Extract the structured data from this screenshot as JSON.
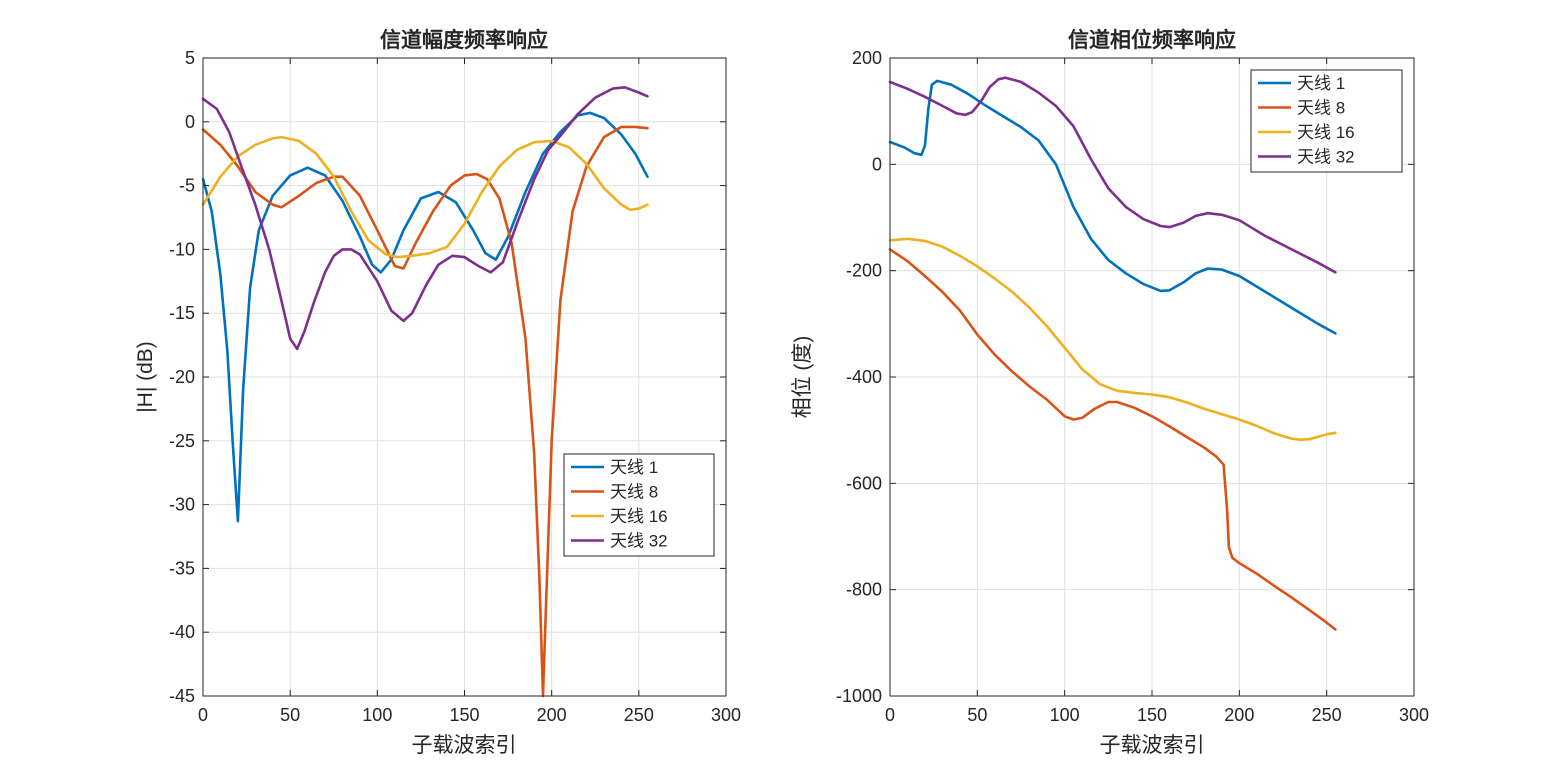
{
  "chart_data": [
    {
      "type": "line",
      "title": "信道幅度频率响应",
      "xlabel": "子载波索引",
      "ylabel": "|H| (dB)",
      "xlim": [
        0,
        300
      ],
      "ylim": [
        -45,
        5
      ],
      "xticks": [
        0,
        50,
        100,
        150,
        200,
        250,
        300
      ],
      "yticks": [
        5,
        0,
        -5,
        -10,
        -15,
        -20,
        -25,
        -30,
        -35,
        -40,
        -45
      ],
      "grid": true,
      "legend_position": "bottom-right",
      "series": [
        {
          "name": "天线 1",
          "color": "#0072BD",
          "points": [
            [
              0,
              -4.5
            ],
            [
              5,
              -7
            ],
            [
              10,
              -12
            ],
            [
              14,
              -18
            ],
            [
              17,
              -25
            ],
            [
              20,
              -31.3
            ],
            [
              23,
              -21
            ],
            [
              27,
              -13
            ],
            [
              32,
              -8.5
            ],
            [
              40,
              -5.8
            ],
            [
              50,
              -4.2
            ],
            [
              60,
              -3.6
            ],
            [
              70,
              -4.2
            ],
            [
              80,
              -6.2
            ],
            [
              90,
              -9
            ],
            [
              97,
              -11.2
            ],
            [
              102,
              -11.8
            ],
            [
              108,
              -10.8
            ],
            [
              115,
              -8.5
            ],
            [
              125,
              -6
            ],
            [
              135,
              -5.5
            ],
            [
              145,
              -6.3
            ],
            [
              155,
              -8.5
            ],
            [
              162,
              -10.3
            ],
            [
              168,
              -10.8
            ],
            [
              175,
              -9
            ],
            [
              185,
              -5.5
            ],
            [
              195,
              -2.5
            ],
            [
              205,
              -0.8
            ],
            [
              215,
              0.5
            ],
            [
              222,
              0.7
            ],
            [
              230,
              0.3
            ],
            [
              240,
              -1
            ],
            [
              248,
              -2.5
            ],
            [
              255,
              -4.3
            ]
          ]
        },
        {
          "name": "天线 8",
          "color": "#D95319",
          "points": [
            [
              0,
              -0.6
            ],
            [
              10,
              -1.8
            ],
            [
              20,
              -3.5
            ],
            [
              30,
              -5.5
            ],
            [
              40,
              -6.5
            ],
            [
              45,
              -6.7
            ],
            [
              55,
              -5.8
            ],
            [
              65,
              -4.8
            ],
            [
              75,
              -4.3
            ],
            [
              80,
              -4.3
            ],
            [
              90,
              -5.8
            ],
            [
              100,
              -8.5
            ],
            [
              110,
              -11.3
            ],
            [
              115,
              -11.5
            ],
            [
              122,
              -9.5
            ],
            [
              132,
              -7
            ],
            [
              142,
              -5
            ],
            [
              150,
              -4.2
            ],
            [
              157,
              -4.1
            ],
            [
              163,
              -4.5
            ],
            [
              170,
              -6
            ],
            [
              177,
              -9.5
            ],
            [
              185,
              -17
            ],
            [
              190,
              -26
            ],
            [
              193,
              -36
            ],
            [
              195,
              -45
            ],
            [
              197,
              -37
            ],
            [
              200,
              -25
            ],
            [
              205,
              -14
            ],
            [
              212,
              -7
            ],
            [
              220,
              -3.5
            ],
            [
              230,
              -1.2
            ],
            [
              240,
              -0.4
            ],
            [
              248,
              -0.4
            ],
            [
              255,
              -0.5
            ]
          ]
        },
        {
          "name": "天线 16",
          "color": "#EDB120",
          "points": [
            [
              0,
              -6.5
            ],
            [
              10,
              -4.3
            ],
            [
              20,
              -2.7
            ],
            [
              30,
              -1.8
            ],
            [
              40,
              -1.3
            ],
            [
              45,
              -1.2
            ],
            [
              55,
              -1.5
            ],
            [
              65,
              -2.5
            ],
            [
              75,
              -4.3
            ],
            [
              85,
              -7
            ],
            [
              95,
              -9.3
            ],
            [
              105,
              -10.4
            ],
            [
              112,
              -10.6
            ],
            [
              120,
              -10.5
            ],
            [
              130,
              -10.3
            ],
            [
              140,
              -9.8
            ],
            [
              150,
              -8
            ],
            [
              160,
              -5.5
            ],
            [
              170,
              -3.5
            ],
            [
              180,
              -2.2
            ],
            [
              190,
              -1.6
            ],
            [
              200,
              -1.5
            ],
            [
              210,
              -2
            ],
            [
              220,
              -3.3
            ],
            [
              230,
              -5.2
            ],
            [
              240,
              -6.5
            ],
            [
              245,
              -6.9
            ],
            [
              250,
              -6.8
            ],
            [
              255,
              -6.5
            ]
          ]
        },
        {
          "name": "天线 32",
          "color": "#7E2F8E",
          "points": [
            [
              0,
              1.8
            ],
            [
              8,
              1
            ],
            [
              15,
              -0.8
            ],
            [
              22,
              -3.5
            ],
            [
              30,
              -6.5
            ],
            [
              38,
              -10
            ],
            [
              45,
              -14
            ],
            [
              50,
              -17
            ],
            [
              54,
              -17.8
            ],
            [
              58,
              -16.5
            ],
            [
              64,
              -14
            ],
            [
              70,
              -11.8
            ],
            [
              75,
              -10.5
            ],
            [
              80,
              -10
            ],
            [
              85,
              -10
            ],
            [
              90,
              -10.4
            ],
            [
              100,
              -12.5
            ],
            [
              108,
              -14.8
            ],
            [
              115,
              -15.6
            ],
            [
              120,
              -15
            ],
            [
              128,
              -12.8
            ],
            [
              135,
              -11.2
            ],
            [
              143,
              -10.5
            ],
            [
              150,
              -10.6
            ],
            [
              158,
              -11.3
            ],
            [
              165,
              -11.8
            ],
            [
              172,
              -11
            ],
            [
              180,
              -8
            ],
            [
              190,
              -4.5
            ],
            [
              198,
              -2.2
            ],
            [
              205,
              -1.1
            ],
            [
              215,
              0.6
            ],
            [
              225,
              1.9
            ],
            [
              235,
              2.6
            ],
            [
              242,
              2.7
            ],
            [
              250,
              2.3
            ],
            [
              255,
              2
            ]
          ]
        }
      ]
    },
    {
      "type": "line",
      "title": "信道相位频率响应",
      "xlabel": "子载波索引",
      "ylabel": "相位 (度)",
      "xlim": [
        0,
        300
      ],
      "ylim": [
        -1000,
        200
      ],
      "xticks": [
        0,
        50,
        100,
        150,
        200,
        250,
        300
      ],
      "yticks": [
        200,
        0,
        -200,
        -400,
        -600,
        -800,
        -1000
      ],
      "grid": true,
      "legend_position": "top-right",
      "series": [
        {
          "name": "天线 1",
          "color": "#0072BD",
          "points": [
            [
              0,
              42
            ],
            [
              8,
              32
            ],
            [
              14,
              21
            ],
            [
              18,
              18
            ],
            [
              20,
              35
            ],
            [
              22,
              105
            ],
            [
              24,
              150
            ],
            [
              27,
              157
            ],
            [
              35,
              150
            ],
            [
              45,
              132
            ],
            [
              55,
              110
            ],
            [
              65,
              90
            ],
            [
              75,
              70
            ],
            [
              85,
              45
            ],
            [
              95,
              0
            ],
            [
              105,
              -80
            ],
            [
              115,
              -140
            ],
            [
              125,
              -180
            ],
            [
              135,
              -205
            ],
            [
              145,
              -225
            ],
            [
              155,
              -238
            ],
            [
              160,
              -237
            ],
            [
              168,
              -222
            ],
            [
              175,
              -205
            ],
            [
              182,
              -196
            ],
            [
              190,
              -198
            ],
            [
              200,
              -210
            ],
            [
              215,
              -240
            ],
            [
              230,
              -270
            ],
            [
              245,
              -300
            ],
            [
              255,
              -318
            ]
          ]
        },
        {
          "name": "天线 8",
          "color": "#D95319",
          "points": [
            [
              0,
              -160
            ],
            [
              10,
              -182
            ],
            [
              20,
              -210
            ],
            [
              30,
              -240
            ],
            [
              40,
              -275
            ],
            [
              50,
              -320
            ],
            [
              60,
              -358
            ],
            [
              70,
              -390
            ],
            [
              80,
              -418
            ],
            [
              90,
              -443
            ],
            [
              100,
              -474
            ],
            [
              105,
              -480
            ],
            [
              110,
              -477
            ],
            [
              117,
              -460
            ],
            [
              125,
              -447
            ],
            [
              130,
              -447
            ],
            [
              140,
              -458
            ],
            [
              150,
              -474
            ],
            [
              160,
              -493
            ],
            [
              170,
              -513
            ],
            [
              180,
              -533
            ],
            [
              187,
              -550
            ],
            [
              191,
              -565
            ],
            [
              193,
              -650
            ],
            [
              194,
              -720
            ],
            [
              196,
              -740
            ],
            [
              200,
              -750
            ],
            [
              210,
              -770
            ],
            [
              220,
              -793
            ],
            [
              230,
              -815
            ],
            [
              240,
              -838
            ],
            [
              250,
              -862
            ],
            [
              255,
              -875
            ]
          ]
        },
        {
          "name": "天线 16",
          "color": "#EDB120",
          "points": [
            [
              0,
              -143
            ],
            [
              10,
              -140
            ],
            [
              20,
              -144
            ],
            [
              30,
              -155
            ],
            [
              40,
              -172
            ],
            [
              50,
              -192
            ],
            [
              60,
              -215
            ],
            [
              70,
              -240
            ],
            [
              80,
              -270
            ],
            [
              90,
              -305
            ],
            [
              100,
              -345
            ],
            [
              110,
              -385
            ],
            [
              120,
              -413
            ],
            [
              130,
              -426
            ],
            [
              140,
              -430
            ],
            [
              150,
              -433
            ],
            [
              160,
              -438
            ],
            [
              170,
              -448
            ],
            [
              180,
              -460
            ],
            [
              190,
              -470
            ],
            [
              200,
              -480
            ],
            [
              210,
              -492
            ],
            [
              220,
              -506
            ],
            [
              230,
              -516
            ],
            [
              235,
              -518
            ],
            [
              240,
              -517
            ],
            [
              250,
              -508
            ],
            [
              255,
              -505
            ]
          ]
        },
        {
          "name": "天线 32",
          "color": "#7E2F8E",
          "points": [
            [
              0,
              155
            ],
            [
              10,
              142
            ],
            [
              20,
              127
            ],
            [
              30,
              110
            ],
            [
              38,
              96
            ],
            [
              43,
              93
            ],
            [
              47,
              98
            ],
            [
              52,
              118
            ],
            [
              57,
              145
            ],
            [
              62,
              160
            ],
            [
              66,
              163
            ],
            [
              75,
              155
            ],
            [
              85,
              135
            ],
            [
              95,
              110
            ],
            [
              105,
              72
            ],
            [
              115,
              10
            ],
            [
              125,
              -45
            ],
            [
              135,
              -80
            ],
            [
              145,
              -103
            ],
            [
              155,
              -116
            ],
            [
              160,
              -118
            ],
            [
              168,
              -110
            ],
            [
              175,
              -97
            ],
            [
              182,
              -92
            ],
            [
              190,
              -95
            ],
            [
              200,
              -105
            ],
            [
              215,
              -135
            ],
            [
              230,
              -160
            ],
            [
              245,
              -185
            ],
            [
              255,
              -203
            ]
          ]
        }
      ]
    }
  ]
}
